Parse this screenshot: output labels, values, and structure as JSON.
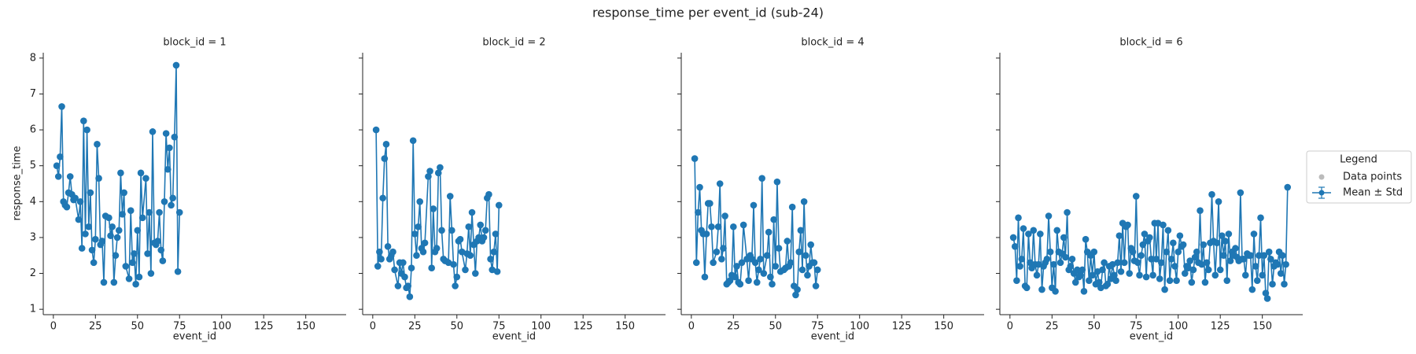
{
  "chart_data": {
    "type": "line",
    "title": "response_time per event_id (sub-24)",
    "ylabel": "response_time",
    "xlabel": "event_id",
    "color": "#1f77b4",
    "xlim": [
      -6,
      174
    ],
    "xticks": [
      0,
      25,
      50,
      75,
      100,
      125,
      150
    ],
    "ylim": [
      0.85,
      8.15
    ],
    "yticks": [
      1,
      2,
      3,
      4,
      5,
      6,
      7,
      8
    ],
    "legend": {
      "title": "Legend",
      "entries": [
        {
          "name": "Data points",
          "color": "#bbbbbb"
        },
        {
          "name": "Mean ± Std",
          "color": "#1f77b4"
        }
      ]
    },
    "panels": [
      {
        "title": "block_id = 1",
        "x": [
          2,
          3,
          4,
          5,
          6,
          7,
          8,
          9,
          10,
          11,
          12,
          13,
          15,
          16,
          17,
          18,
          19,
          20,
          21,
          22,
          23,
          24,
          25,
          26,
          27,
          28,
          29,
          30,
          31,
          33,
          34,
          35,
          36,
          37,
          38,
          39,
          40,
          41,
          42,
          43,
          45,
          46,
          47,
          48,
          49,
          50,
          51,
          52,
          53,
          55,
          56,
          57,
          58,
          59,
          60,
          61,
          62,
          63,
          64,
          65,
          66,
          67,
          68,
          69,
          70,
          71,
          72,
          73,
          74,
          75
        ],
        "values": [
          5.0,
          4.7,
          5.25,
          6.65,
          4.0,
          3.9,
          3.85,
          4.25,
          4.7,
          4.2,
          4.05,
          4.1,
          3.5,
          4.0,
          2.7,
          6.25,
          3.1,
          6.0,
          3.3,
          4.25,
          2.65,
          2.3,
          2.95,
          5.6,
          4.65,
          2.8,
          2.9,
          1.75,
          3.6,
          3.55,
          3.05,
          3.3,
          1.75,
          2.5,
          3.0,
          3.2,
          4.8,
          3.65,
          4.25,
          2.2,
          1.85,
          3.75,
          2.3,
          2.55,
          1.7,
          3.2,
          1.9,
          4.8,
          3.55,
          4.65,
          2.55,
          3.7,
          2.0,
          5.95,
          2.85,
          2.8,
          2.9,
          3.7,
          2.65,
          2.35,
          4.0,
          5.9,
          4.9,
          5.5,
          3.9,
          4.1,
          5.8,
          7.8,
          2.05,
          3.7
        ]
      },
      {
        "title": "block_id = 2",
        "x": [
          2,
          3,
          4,
          5,
          6,
          7,
          8,
          9,
          10,
          11,
          12,
          13,
          15,
          16,
          17,
          18,
          19,
          20,
          21,
          22,
          23,
          24,
          25,
          26,
          27,
          28,
          29,
          30,
          31,
          33,
          34,
          35,
          36,
          37,
          38,
          39,
          40,
          41,
          42,
          43,
          45,
          46,
          47,
          48,
          49,
          50,
          51,
          52,
          53,
          55,
          56,
          57,
          58,
          59,
          60,
          61,
          62,
          63,
          64,
          65,
          66,
          67,
          68,
          69,
          70,
          71,
          72,
          73,
          74,
          75
        ],
        "values": [
          6.0,
          2.2,
          2.6,
          2.4,
          4.1,
          5.2,
          5.6,
          2.75,
          2.4,
          2.5,
          2.6,
          2.1,
          1.65,
          2.3,
          2.0,
          2.3,
          1.9,
          1.6,
          1.65,
          1.35,
          2.15,
          5.7,
          3.1,
          2.5,
          3.3,
          4.0,
          2.7,
          2.6,
          2.85,
          4.7,
          4.85,
          2.15,
          3.8,
          2.6,
          2.7,
          4.8,
          4.95,
          3.2,
          2.4,
          2.35,
          2.3,
          4.15,
          3.2,
          2.25,
          1.65,
          1.9,
          2.9,
          2.95,
          2.6,
          2.1,
          2.55,
          3.3,
          2.5,
          3.7,
          2.8,
          2.0,
          2.9,
          3.0,
          3.35,
          2.9,
          3.0,
          3.2,
          4.1,
          4.2,
          2.4,
          2.1,
          2.6,
          3.1,
          2.05,
          3.9
        ]
      },
      {
        "title": "block_id = 4",
        "x": [
          2,
          3,
          4,
          5,
          6,
          7,
          8,
          9,
          10,
          11,
          12,
          13,
          15,
          16,
          17,
          18,
          19,
          20,
          21,
          22,
          23,
          24,
          25,
          26,
          27,
          28,
          29,
          30,
          31,
          33,
          34,
          35,
          36,
          37,
          38,
          39,
          40,
          41,
          42,
          43,
          45,
          46,
          47,
          48,
          49,
          50,
          51,
          52,
          53,
          55,
          56,
          57,
          58,
          59,
          60,
          61,
          62,
          63,
          64,
          65,
          66,
          67,
          68,
          69,
          70,
          71,
          72,
          73,
          74,
          75
        ],
        "values": [
          5.2,
          2.3,
          3.7,
          4.4,
          3.2,
          3.1,
          1.9,
          3.1,
          3.95,
          3.95,
          3.3,
          2.3,
          2.6,
          3.3,
          4.5,
          2.4,
          2.7,
          3.6,
          1.7,
          1.75,
          1.8,
          1.95,
          3.3,
          1.9,
          2.2,
          1.75,
          1.7,
          2.3,
          3.35,
          2.4,
          1.8,
          2.5,
          2.4,
          3.9,
          2.3,
          1.75,
          2.1,
          2.4,
          4.65,
          2.0,
          2.5,
          3.15,
          1.9,
          1.7,
          3.5,
          2.2,
          4.55,
          2.7,
          2.05,
          2.1,
          2.15,
          2.9,
          2.2,
          2.3,
          3.85,
          1.65,
          1.4,
          1.55,
          2.6,
          3.2,
          2.1,
          4.0,
          2.5,
          1.95,
          2.2,
          2.8,
          2.3,
          2.3,
          1.65,
          2.1
        ]
      },
      {
        "title": "block_id = 6",
        "x": [
          2,
          3,
          4,
          5,
          6,
          7,
          8,
          9,
          10,
          11,
          12,
          13,
          14,
          15,
          16,
          17,
          18,
          19,
          20,
          21,
          22,
          23,
          24,
          25,
          26,
          27,
          28,
          29,
          30,
          31,
          32,
          33,
          34,
          35,
          36,
          37,
          38,
          39,
          40,
          41,
          42,
          43,
          44,
          45,
          46,
          47,
          48,
          49,
          50,
          51,
          52,
          53,
          54,
          55,
          56,
          57,
          58,
          59,
          60,
          61,
          62,
          63,
          64,
          65,
          66,
          67,
          68,
          69,
          70,
          71,
          72,
          73,
          74,
          75,
          76,
          77,
          78,
          79,
          80,
          81,
          82,
          83,
          84,
          85,
          86,
          87,
          88,
          89,
          90,
          91,
          92,
          93,
          94,
          95,
          96,
          97,
          98,
          99,
          100,
          101,
          102,
          103,
          104,
          105,
          106,
          107,
          108,
          109,
          110,
          111,
          112,
          113,
          114,
          115,
          116,
          117,
          118,
          119,
          120,
          121,
          122,
          123,
          124,
          125,
          126,
          127,
          128,
          129,
          130,
          131,
          132,
          133,
          134,
          135,
          136,
          137,
          138,
          139,
          140,
          141,
          142,
          143,
          144,
          145,
          146,
          147,
          148,
          149,
          150,
          151,
          152,
          153,
          154,
          155,
          156,
          157,
          158,
          159,
          160,
          161,
          162,
          163,
          164,
          165
        ],
        "values": [
          3.0,
          2.75,
          1.8,
          3.55,
          2.2,
          2.4,
          3.25,
          1.65,
          1.6,
          3.1,
          2.3,
          2.15,
          3.2,
          2.25,
          1.95,
          2.25,
          3.1,
          1.55,
          2.2,
          2.3,
          2.4,
          3.6,
          2.6,
          1.6,
          2.25,
          1.5,
          3.2,
          2.6,
          2.3,
          2.55,
          3.0,
          2.45,
          3.7,
          2.1,
          2.2,
          2.4,
          2.0,
          1.75,
          2.1,
          1.9,
          1.95,
          2.1,
          1.5,
          2.95,
          2.6,
          1.8,
          2.5,
          1.95,
          2.6,
          1.7,
          2.05,
          1.75,
          1.6,
          2.1,
          2.3,
          1.65,
          1.7,
          2.2,
          1.85,
          2.25,
          1.95,
          1.8,
          2.3,
          3.05,
          2.05,
          3.4,
          2.3,
          3.3,
          3.35,
          2.0,
          2.7,
          2.6,
          2.35,
          4.15,
          2.3,
          1.95,
          2.5,
          2.8,
          3.1,
          1.9,
          2.9,
          3.0,
          2.4,
          1.95,
          3.4,
          2.4,
          3.4,
          1.85,
          2.3,
          3.35,
          1.55,
          2.6,
          3.2,
          1.8,
          2.4,
          2.85,
          2.2,
          1.8,
          2.6,
          3.05,
          2.75,
          2.8,
          2.0,
          2.2,
          2.15,
          2.35,
          1.75,
          2.1,
          2.45,
          2.6,
          2.3,
          3.75,
          2.25,
          2.8,
          1.75,
          2.3,
          2.1,
          2.85,
          4.2,
          2.9,
          1.95,
          2.85,
          4.0,
          2.1,
          3.05,
          2.5,
          2.9,
          1.8,
          3.1,
          2.35,
          2.6,
          2.5,
          2.7,
          2.45,
          2.35,
          4.25,
          2.4,
          2.4,
          1.95,
          2.55,
          2.5,
          2.5,
          1.55,
          3.1,
          2.2,
          1.8,
          2.5,
          3.55,
          1.95,
          2.5,
          1.45,
          1.3,
          2.6,
          2.4,
          1.7,
          2.2,
          2.3,
          2.25,
          2.6,
          2.0,
          2.5,
          1.7,
          2.25,
          4.4
        ]
      }
    ]
  }
}
